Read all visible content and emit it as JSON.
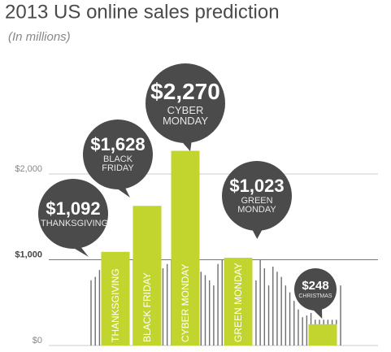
{
  "chart_data": {
    "type": "bar",
    "title": "2013 US online sales prediction",
    "subtitle": "(In millions)",
    "categories": [
      "THANKSGIVING",
      "BLACK FRIDAY",
      "CYBER MONDAY",
      "GREEN MONDAY",
      "CHRISTMAS"
    ],
    "values": [
      1092,
      1628,
      2270,
      1023,
      248
    ],
    "value_labels": [
      "$1,092",
      "$1,628",
      "$2,270",
      "$1,023",
      "$248"
    ],
    "color": "#c2d52e",
    "bubble_color": "#4b4b4b",
    "background_values": [
      760,
      800,
      880,
      900,
      850,
      900,
      950,
      1000,
      950,
      900,
      1000,
      1050,
      1000,
      950,
      900,
      880,
      850,
      900,
      950,
      1000,
      1050,
      1000,
      920,
      900,
      940,
      900,
      860,
      820,
      760,
      700,
      950,
      1000,
      980,
      960,
      900,
      1000,
      950,
      900,
      820,
      760,
      1000,
      900,
      700,
      920,
      860,
      800,
      700,
      620,
      520,
      420,
      330,
      350,
      380,
      300,
      300,
      300,
      300,
      300,
      300,
      700
    ],
    "background_color": "#6d6d6d",
    "ylim": [
      0,
      4000
    ],
    "yticks": [
      {
        "value": 0,
        "label": "$0"
      },
      {
        "value": 1000,
        "label": "$1,000"
      },
      {
        "value": 2000,
        "label": "$2,000"
      }
    ],
    "grid": true
  }
}
